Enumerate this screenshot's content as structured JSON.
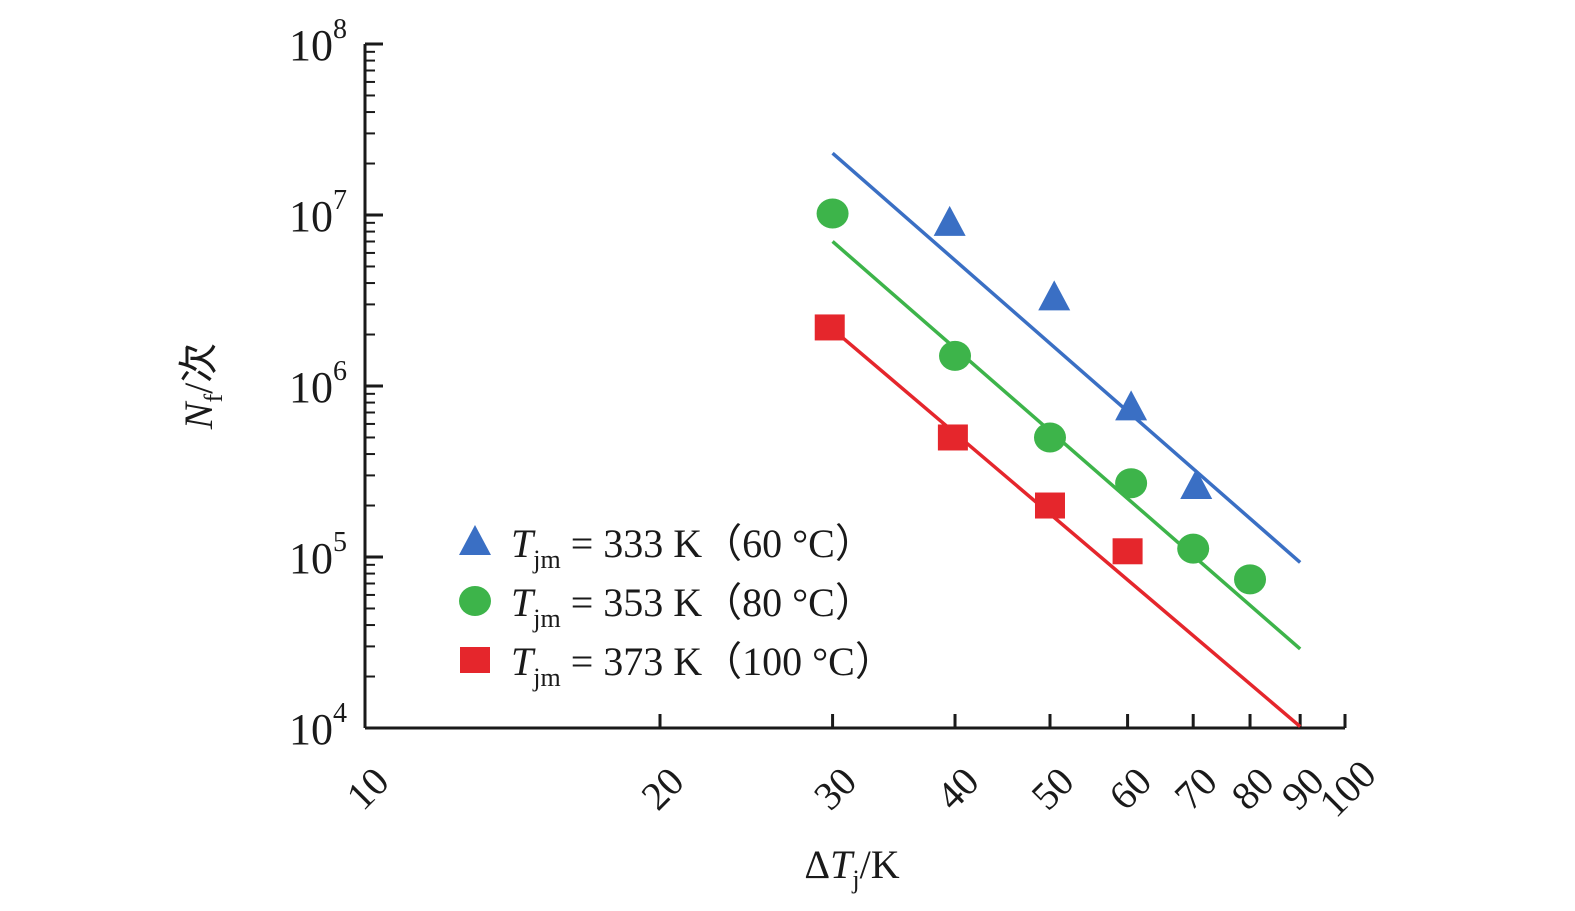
{
  "chart_data": {
    "type": "scatter",
    "title": "",
    "xscale": "log",
    "yscale": "log",
    "xlim": [
      10,
      100
    ],
    "ylim": [
      10000,
      100000000
    ],
    "xlabel": {
      "prefix": "ΔT",
      "subscript": "j",
      "suffix": "/K"
    },
    "ylabel": {
      "symbol": "N",
      "subscript": "f",
      "suffix": "/次"
    },
    "x_ticks": [
      {
        "value": 10,
        "label": "10"
      },
      {
        "value": 20,
        "label": "20"
      },
      {
        "value": 30,
        "label": "30"
      },
      {
        "value": 40,
        "label": "40"
      },
      {
        "value": 50,
        "label": "50"
      },
      {
        "value": 60,
        "label": "60"
      },
      {
        "value": 70,
        "label": "70"
      },
      {
        "value": 80,
        "label": "80"
      },
      {
        "value": 90,
        "label": "90"
      },
      {
        "value": 100,
        "label": "100"
      }
    ],
    "y_ticks": [
      {
        "value": 10000,
        "base": "10",
        "exp": "4"
      },
      {
        "value": 100000,
        "base": "10",
        "exp": "5"
      },
      {
        "value": 1000000,
        "base": "10",
        "exp": "6"
      },
      {
        "value": 10000000,
        "base": "10",
        "exp": "7"
      },
      {
        "value": 100000000,
        "base": "10",
        "exp": "8"
      }
    ],
    "legend_position": "bottom-left",
    "series": [
      {
        "name": "Tjm = 333 K（60 °C）",
        "legend": {
          "symbol": "T",
          "subscript": "jm",
          "rest": " = 333 K（60 °C）"
        },
        "marker": "triangle",
        "color": "#3a6fc4",
        "points": [
          [
            39.5,
            9000000
          ],
          [
            50.5,
            3300000
          ],
          [
            60.5,
            750000
          ],
          [
            70.5,
            260000
          ]
        ],
        "fit": [
          [
            30,
            23000000
          ],
          [
            90,
            93000
          ]
        ]
      },
      {
        "name": "Tjm = 353 K（80 °C）",
        "legend": {
          "symbol": "T",
          "subscript": "jm",
          "rest": " = 353 K（80 °C）"
        },
        "marker": "circle",
        "color": "#3db44a",
        "points": [
          [
            30,
            10200000
          ],
          [
            40,
            1500000
          ],
          [
            50,
            500000
          ],
          [
            60.5,
            270000
          ],
          [
            70,
            112000
          ],
          [
            80,
            74000
          ]
        ],
        "fit": [
          [
            30,
            7000000
          ],
          [
            90,
            29000
          ]
        ]
      },
      {
        "name": "Tjm = 373 K（100 °C）",
        "legend": {
          "symbol": "T",
          "subscript": "jm",
          "rest": " = 373 K（100 °C）"
        },
        "marker": "square",
        "color": "#e5262c",
        "points": [
          [
            29.8,
            2200000
          ],
          [
            39.8,
            500000
          ],
          [
            50,
            200000
          ],
          [
            60,
            108000
          ]
        ],
        "fit": [
          [
            30,
            2150000
          ],
          [
            90,
            10200
          ]
        ]
      }
    ]
  }
}
